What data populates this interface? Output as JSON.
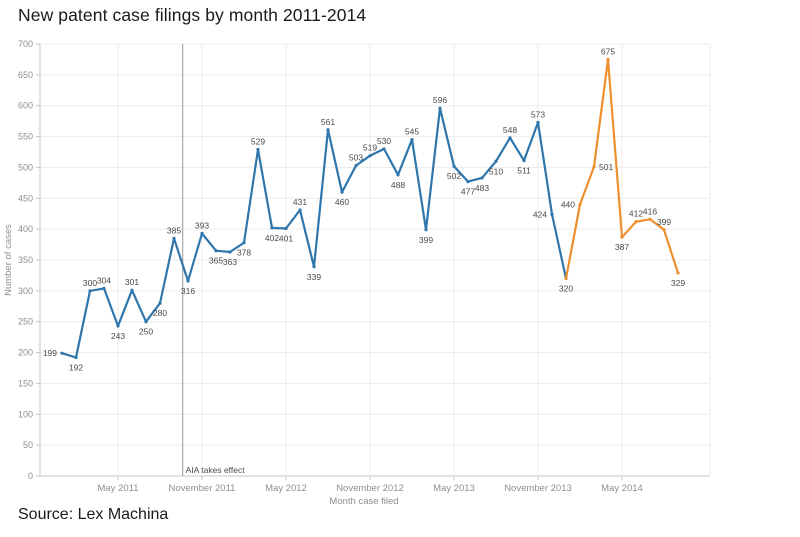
{
  "page": {
    "title": "New patent case filings by month 2011-2014",
    "source": "Source: Lex Machina"
  },
  "chart_data": {
    "type": "line",
    "title": "New patent case filings by month 2011-2014",
    "xlabel": "Month case filed",
    "ylabel": "Number of cases",
    "ylim": [
      0,
      700
    ],
    "y_tick_step": 50,
    "grid": true,
    "x_ticks": [
      {
        "at": 4,
        "label": "May 2011"
      },
      {
        "at": 10,
        "label": "November 2011"
      },
      {
        "at": 16,
        "label": "May 2012"
      },
      {
        "at": 22,
        "label": "November 2012"
      },
      {
        "at": 28,
        "label": "May 2013"
      },
      {
        "at": 34,
        "label": "November 2013"
      },
      {
        "at": 40,
        "label": "May 2014"
      }
    ],
    "values": [
      199,
      192,
      300,
      304,
      243,
      301,
      250,
      280,
      385,
      316,
      393,
      365,
      363,
      378,
      529,
      402,
      401,
      431,
      339,
      561,
      460,
      503,
      519,
      530,
      488,
      545,
      399,
      596,
      502,
      477,
      483,
      510,
      548,
      511,
      573,
      424,
      320,
      440,
      501,
      675,
      387,
      412,
      416,
      399,
      329
    ],
    "label_positions": [
      "left",
      "below",
      "above",
      "above",
      "below",
      "above",
      "below",
      "below",
      "above",
      "below",
      "above",
      "below",
      "below",
      "below",
      "above",
      "below",
      "below",
      "above",
      "below",
      "above",
      "below",
      "above",
      "above",
      "above",
      "below",
      "above",
      "below",
      "above",
      "below",
      "below",
      "below",
      "below",
      "above",
      "below",
      "above",
      "left",
      "below",
      "left",
      "right",
      "above",
      "below",
      "above",
      "above",
      "above",
      "below"
    ],
    "series": [
      {
        "name": "filings-2011-2013",
        "color": "#2e76ac",
        "start_index": 0,
        "end_index": 36
      },
      {
        "name": "filings-2014",
        "color": "#ee8f2e",
        "start_index": 36,
        "end_index": 44
      }
    ],
    "annotation": {
      "label": "AIA takes effect",
      "x_index": 8.62
    },
    "colors": {
      "grid": "#ececec",
      "axis": "#c6c6c6",
      "tick_text": "#8f8f8f",
      "data_label": "#4a4a4a",
      "annotation_line": "#a9a9a9"
    }
  }
}
